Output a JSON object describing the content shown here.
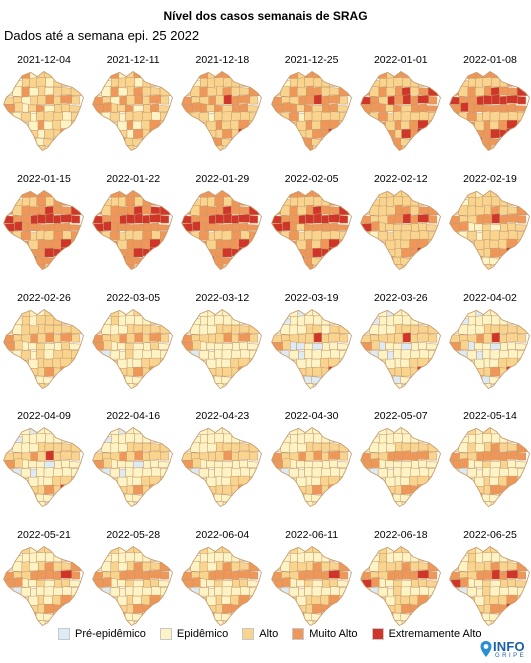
{
  "title": "Nível dos casos semanais de SRAG",
  "subtitle": "Dados até a semana epi. 25 2022",
  "colors": {
    "pre_epidemico": "#dcebf5",
    "epidemico": "#fdf3c4",
    "alto": "#f8d48f",
    "muito_alto": "#ef9659",
    "extremamente_alto": "#cf3529",
    "border": "#c69a6c"
  },
  "levels": [
    "pre_epidemico",
    "epidemico",
    "alto",
    "muito_alto",
    "extremamente_alto"
  ],
  "legend": [
    {
      "key": "pre_epidemico",
      "label": "Pré-epidêmico"
    },
    {
      "key": "epidemico",
      "label": "Epidêmico"
    },
    {
      "key": "alto",
      "label": "Alto"
    },
    {
      "key": "muito_alto",
      "label": "Muito Alto"
    },
    {
      "key": "extremamente_alto",
      "label": "Extremamente Alto"
    }
  ],
  "logo": {
    "text": "INFO",
    "subtext": "GRIPE"
  },
  "maps": [
    {
      "date": "2021-12-04",
      "regions": [
        1,
        2,
        3,
        1,
        2,
        2,
        2,
        2,
        1,
        2,
        1,
        2,
        2,
        2,
        1,
        2,
        2,
        2,
        1,
        1,
        3,
        1,
        2,
        1,
        2,
        2,
        2,
        2,
        2,
        1,
        2,
        2,
        3,
        2,
        3,
        2,
        3,
        2
      ]
    },
    {
      "date": "2021-12-11",
      "regions": [
        2,
        2,
        3,
        1,
        2,
        3,
        2,
        2,
        1,
        2,
        1,
        2,
        2,
        2,
        1,
        2,
        2,
        2,
        1,
        1,
        3,
        1,
        2,
        3,
        2,
        2,
        2,
        3,
        2,
        1,
        3,
        2,
        3,
        2,
        3,
        2,
        3,
        3
      ]
    },
    {
      "date": "2021-12-18",
      "regions": [
        3,
        2,
        3,
        2,
        3,
        3,
        2,
        2,
        2,
        2,
        1,
        2,
        2,
        2,
        2,
        2,
        2,
        2,
        2,
        2,
        3,
        2,
        2,
        3,
        2,
        2,
        3,
        3,
        2,
        2,
        3,
        2,
        4,
        3,
        3,
        2,
        3,
        3
      ]
    },
    {
      "date": "2021-12-25",
      "regions": [
        3,
        2,
        3,
        2,
        3,
        3,
        2,
        2,
        2,
        3,
        1,
        2,
        2,
        2,
        2,
        2,
        2,
        2,
        2,
        2,
        3,
        2,
        3,
        3,
        2,
        2,
        3,
        3,
        2,
        2,
        3,
        3,
        4,
        3,
        3,
        2,
        3,
        3
      ]
    },
    {
      "date": "2022-01-01",
      "regions": [
        3,
        2,
        3,
        2,
        3,
        3,
        3,
        3,
        2,
        3,
        2,
        2,
        2,
        2,
        2,
        2,
        2,
        2,
        3,
        2,
        3,
        2,
        3,
        4,
        2,
        3,
        4,
        4,
        3,
        2,
        4,
        3,
        4,
        3,
        4,
        3,
        3,
        3
      ]
    },
    {
      "date": "2022-01-08",
      "regions": [
        3,
        3,
        3,
        3,
        3,
        3,
        3,
        3,
        2,
        3,
        2,
        2,
        2,
        2,
        2,
        2,
        3,
        2,
        3,
        2,
        3,
        2,
        3,
        4,
        3,
        3,
        4,
        4,
        3,
        3,
        4,
        4,
        4,
        4,
        4,
        4,
        3,
        4
      ]
    },
    {
      "date": "2022-01-15",
      "regions": [
        3,
        3,
        3,
        3,
        3,
        3,
        3,
        3,
        2,
        3,
        2,
        2,
        2,
        3,
        2,
        3,
        3,
        2,
        3,
        2,
        3,
        3,
        3,
        4,
        3,
        3,
        4,
        4,
        3,
        3,
        4,
        4,
        4,
        4,
        4,
        4,
        4,
        4
      ]
    },
    {
      "date": "2022-01-22",
      "regions": [
        3,
        3,
        3,
        3,
        3,
        3,
        3,
        3,
        2,
        3,
        2,
        2,
        2,
        3,
        2,
        3,
        3,
        2,
        3,
        2,
        3,
        3,
        3,
        4,
        3,
        4,
        4,
        4,
        3,
        3,
        4,
        4,
        4,
        4,
        4,
        4,
        4,
        4
      ]
    },
    {
      "date": "2022-01-29",
      "regions": [
        3,
        3,
        3,
        3,
        3,
        3,
        3,
        3,
        2,
        3,
        2,
        2,
        2,
        3,
        2,
        3,
        3,
        2,
        3,
        2,
        3,
        3,
        3,
        4,
        3,
        3,
        4,
        4,
        3,
        3,
        4,
        4,
        4,
        4,
        4,
        4,
        4,
        4
      ]
    },
    {
      "date": "2022-02-05",
      "regions": [
        3,
        2,
        3,
        3,
        3,
        3,
        3,
        3,
        2,
        3,
        2,
        2,
        2,
        2,
        2,
        2,
        3,
        2,
        3,
        2,
        3,
        2,
        3,
        4,
        3,
        3,
        4,
        4,
        3,
        3,
        4,
        4,
        4,
        4,
        4,
        4,
        4,
        4
      ]
    },
    {
      "date": "2022-02-12",
      "regions": [
        2,
        2,
        2,
        2,
        2,
        2,
        2,
        2,
        1,
        2,
        2,
        2,
        2,
        2,
        2,
        2,
        2,
        2,
        2,
        2,
        2,
        2,
        3,
        3,
        2,
        3,
        3,
        3,
        2,
        2,
        3,
        3,
        4,
        3,
        4,
        3,
        4,
        3
      ]
    },
    {
      "date": "2022-02-19",
      "regions": [
        1,
        1,
        2,
        1,
        2,
        2,
        2,
        2,
        1,
        2,
        1,
        2,
        2,
        2,
        2,
        2,
        2,
        2,
        2,
        2,
        2,
        2,
        2,
        3,
        2,
        2,
        3,
        3,
        2,
        2,
        3,
        3,
        4,
        3,
        3,
        3,
        3,
        3
      ]
    },
    {
      "date": "2022-02-26",
      "regions": [
        1,
        1,
        2,
        1,
        1,
        2,
        1,
        1,
        1,
        2,
        1,
        2,
        1,
        2,
        2,
        2,
        2,
        1,
        2,
        1,
        2,
        2,
        2,
        2,
        2,
        2,
        2,
        3,
        2,
        2,
        3,
        2,
        3,
        2,
        3,
        2,
        3,
        2
      ]
    },
    {
      "date": "2022-03-05",
      "regions": [
        1,
        1,
        2,
        1,
        1,
        2,
        1,
        1,
        0,
        1,
        1,
        2,
        1,
        1,
        1,
        1,
        2,
        1,
        2,
        1,
        1,
        1,
        2,
        2,
        2,
        2,
        2,
        3,
        2,
        2,
        3,
        2,
        3,
        2,
        3,
        2,
        3,
        2
      ]
    },
    {
      "date": "2022-03-12",
      "regions": [
        1,
        1,
        1,
        1,
        1,
        1,
        1,
        1,
        0,
        1,
        1,
        1,
        1,
        1,
        1,
        1,
        1,
        1,
        1,
        1,
        1,
        1,
        2,
        2,
        2,
        2,
        2,
        3,
        2,
        2,
        2,
        2,
        3,
        2,
        3,
        2,
        3,
        2
      ]
    },
    {
      "date": "2022-03-19",
      "regions": [
        0,
        0,
        1,
        0,
        1,
        1,
        1,
        1,
        0,
        1,
        0,
        1,
        1,
        1,
        1,
        1,
        1,
        1,
        1,
        1,
        1,
        1,
        2,
        2,
        1,
        2,
        2,
        2,
        2,
        2,
        2,
        2,
        4,
        2,
        2,
        2,
        3,
        2
      ]
    },
    {
      "date": "2022-03-26",
      "regions": [
        0,
        1,
        1,
        0,
        1,
        1,
        1,
        1,
        0,
        1,
        0,
        1,
        1,
        1,
        1,
        1,
        1,
        1,
        1,
        1,
        1,
        1,
        2,
        2,
        2,
        2,
        2,
        2,
        2,
        2,
        2,
        2,
        4,
        2,
        2,
        2,
        3,
        2
      ]
    },
    {
      "date": "2022-04-02",
      "regions": [
        0,
        1,
        1,
        0,
        1,
        1,
        1,
        1,
        0,
        1,
        0,
        1,
        1,
        1,
        1,
        1,
        1,
        1,
        1,
        1,
        1,
        1,
        2,
        2,
        2,
        2,
        2,
        2,
        2,
        2,
        3,
        2,
        4,
        2,
        2,
        2,
        3,
        2
      ]
    },
    {
      "date": "2022-04-09",
      "regions": [
        1,
        1,
        1,
        0,
        1,
        1,
        1,
        1,
        0,
        1,
        0,
        1,
        1,
        1,
        1,
        1,
        1,
        1,
        1,
        1,
        1,
        1,
        2,
        2,
        2,
        2,
        2,
        2,
        2,
        2,
        3,
        2,
        4,
        2,
        2,
        2,
        3,
        2
      ]
    },
    {
      "date": "2022-04-16",
      "regions": [
        1,
        1,
        1,
        0,
        1,
        1,
        1,
        1,
        0,
        1,
        0,
        1,
        1,
        1,
        1,
        1,
        1,
        1,
        1,
        1,
        1,
        1,
        2,
        2,
        2,
        2,
        2,
        2,
        2,
        2,
        3,
        2,
        3,
        2,
        2,
        2,
        3,
        2
      ]
    },
    {
      "date": "2022-04-23",
      "regions": [
        1,
        1,
        1,
        1,
        1,
        1,
        1,
        1,
        0,
        1,
        1,
        1,
        1,
        1,
        1,
        1,
        1,
        1,
        1,
        1,
        1,
        1,
        2,
        2,
        2,
        2,
        2,
        2,
        2,
        2,
        2,
        2,
        3,
        2,
        2,
        2,
        3,
        2
      ]
    },
    {
      "date": "2022-04-30",
      "regions": [
        1,
        1,
        1,
        1,
        1,
        1,
        1,
        1,
        0,
        1,
        1,
        1,
        1,
        1,
        1,
        1,
        1,
        1,
        1,
        1,
        1,
        1,
        2,
        2,
        2,
        2,
        2,
        3,
        2,
        2,
        3,
        2,
        3,
        2,
        3,
        2,
        3,
        2
      ]
    },
    {
      "date": "2022-05-07",
      "regions": [
        1,
        1,
        1,
        1,
        1,
        1,
        1,
        1,
        0,
        1,
        1,
        1,
        1,
        1,
        1,
        1,
        1,
        1,
        1,
        1,
        1,
        1,
        2,
        2,
        2,
        2,
        2,
        3,
        2,
        2,
        3,
        3,
        3,
        3,
        3,
        2,
        3,
        3
      ]
    },
    {
      "date": "2022-05-14",
      "regions": [
        1,
        1,
        2,
        1,
        2,
        1,
        1,
        1,
        0,
        1,
        1,
        1,
        1,
        1,
        1,
        1,
        1,
        1,
        1,
        1,
        2,
        1,
        2,
        3,
        2,
        2,
        3,
        3,
        2,
        2,
        3,
        3,
        3,
        3,
        3,
        3,
        3,
        3
      ]
    },
    {
      "date": "2022-05-21",
      "regions": [
        1,
        1,
        2,
        1,
        2,
        2,
        1,
        1,
        0,
        1,
        1,
        1,
        1,
        1,
        1,
        1,
        2,
        1,
        1,
        1,
        2,
        1,
        2,
        3,
        2,
        2,
        3,
        3,
        2,
        2,
        3,
        3,
        3,
        3,
        4,
        3,
        3,
        3
      ]
    },
    {
      "date": "2022-05-28",
      "regions": [
        1,
        1,
        2,
        1,
        2,
        2,
        1,
        1,
        0,
        1,
        1,
        1,
        1,
        1,
        1,
        1,
        2,
        1,
        1,
        1,
        2,
        1,
        2,
        3,
        2,
        2,
        3,
        3,
        2,
        2,
        3,
        3,
        3,
        3,
        3,
        3,
        3,
        3
      ]
    },
    {
      "date": "2022-06-04",
      "regions": [
        1,
        1,
        2,
        1,
        2,
        2,
        1,
        1,
        0,
        1,
        1,
        1,
        1,
        1,
        1,
        1,
        2,
        1,
        2,
        1,
        2,
        1,
        2,
        3,
        2,
        2,
        3,
        3,
        2,
        2,
        3,
        3,
        3,
        3,
        3,
        3,
        3,
        3
      ]
    },
    {
      "date": "2022-06-11",
      "regions": [
        1,
        1,
        2,
        1,
        2,
        2,
        1,
        1,
        0,
        1,
        1,
        1,
        1,
        1,
        1,
        1,
        2,
        1,
        2,
        1,
        2,
        2,
        2,
        3,
        2,
        2,
        3,
        3,
        2,
        2,
        3,
        3,
        3,
        3,
        4,
        3,
        3,
        3
      ]
    },
    {
      "date": "2022-06-18",
      "regions": [
        1,
        1,
        2,
        1,
        2,
        2,
        2,
        1,
        0,
        1,
        1,
        2,
        1,
        1,
        1,
        1,
        2,
        1,
        2,
        1,
        2,
        2,
        2,
        3,
        2,
        2,
        3,
        3,
        2,
        2,
        3,
        3,
        3,
        3,
        4,
        3,
        4,
        3
      ]
    },
    {
      "date": "2022-06-25",
      "regions": [
        1,
        1,
        2,
        1,
        2,
        2,
        2,
        1,
        0,
        1,
        1,
        2,
        1,
        1,
        1,
        1,
        2,
        1,
        2,
        1,
        2,
        2,
        2,
        3,
        2,
        2,
        3,
        3,
        2,
        2,
        3,
        3,
        4,
        3,
        4,
        3,
        4,
        3
      ]
    }
  ]
}
